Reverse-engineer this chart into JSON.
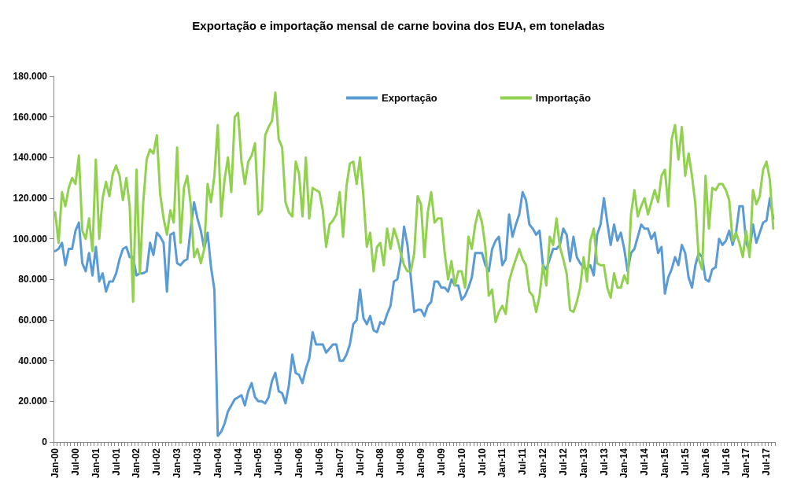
{
  "chart_data": {
    "type": "line",
    "title": "Exportação e importação mensal de carne bovina dos EUA, em toneladas",
    "categories": [
      "Jan-00",
      null,
      null,
      null,
      null,
      null,
      "Jul-00",
      null,
      null,
      null,
      null,
      null,
      "Jan-01",
      null,
      null,
      null,
      null,
      null,
      "Jul-01",
      null,
      null,
      null,
      null,
      null,
      "Jan-02",
      null,
      null,
      null,
      null,
      null,
      "Jul-02",
      null,
      null,
      null,
      null,
      null,
      "Jan-03",
      null,
      null,
      null,
      null,
      null,
      "Jul-03",
      null,
      null,
      null,
      null,
      null,
      "Jan-04",
      null,
      null,
      null,
      null,
      null,
      "Jul-04",
      null,
      null,
      null,
      null,
      null,
      "Jan-05",
      null,
      null,
      null,
      null,
      null,
      "Jul-05",
      null,
      null,
      null,
      null,
      null,
      "Jan-06",
      null,
      null,
      null,
      null,
      null,
      "Jul-06",
      null,
      null,
      null,
      null,
      null,
      "Jan-07",
      null,
      null,
      null,
      null,
      null,
      "Jul-07",
      null,
      null,
      null,
      null,
      null,
      "Jan-08",
      null,
      null,
      null,
      null,
      null,
      "Jul-08",
      null,
      null,
      null,
      null,
      null,
      "Jan-09",
      null,
      null,
      null,
      null,
      null,
      "Jul-09",
      null,
      null,
      null,
      null,
      null,
      "Jan-10",
      null,
      null,
      null,
      null,
      null,
      "Jul-10",
      null,
      null,
      null,
      null,
      null,
      "Jan-11",
      null,
      null,
      null,
      null,
      null,
      "Jul-11",
      null,
      null,
      null,
      null,
      null,
      "Jan-12",
      null,
      null,
      null,
      null,
      null,
      "Jul-12",
      null,
      null,
      null,
      null,
      null,
      "Jan-13",
      null,
      null,
      null,
      null,
      null,
      "Jul-13",
      null,
      null,
      null,
      null,
      null,
      "Jan-14",
      null,
      null,
      null,
      null,
      null,
      "Jul-14",
      null,
      null,
      null,
      null,
      null,
      "Jan-15",
      null,
      null,
      null,
      null,
      null,
      "Jul-15",
      null,
      null,
      null,
      null,
      null,
      "Jan-16",
      null,
      null,
      null,
      null,
      null,
      "Jul-16",
      null,
      null,
      null,
      null,
      null,
      "Jan-17",
      null,
      null,
      null,
      null,
      null,
      "Jul-17",
      null,
      null
    ],
    "series": [
      {
        "name": "Exportação",
        "color": "#5b9bd5",
        "values": [
          94000,
          95000,
          98000,
          87000,
          95000,
          95000,
          104000,
          108000,
          88000,
          84000,
          93000,
          82000,
          96000,
          79000,
          83000,
          74000,
          79000,
          79000,
          83000,
          90000,
          95000,
          96000,
          91000,
          91000,
          82000,
          83000,
          83000,
          84000,
          98000,
          92000,
          103000,
          101000,
          98000,
          74000,
          102000,
          103000,
          88000,
          87000,
          89000,
          90000,
          105000,
          118000,
          110000,
          104000,
          95000,
          103000,
          86000,
          75000,
          3000,
          5000,
          9000,
          15000,
          18000,
          21000,
          22000,
          23000,
          18000,
          25000,
          29000,
          22000,
          20000,
          20000,
          19000,
          22000,
          30000,
          34000,
          25000,
          24000,
          19000,
          28000,
          43000,
          34000,
          33000,
          29000,
          36000,
          41000,
          54000,
          48000,
          48000,
          48000,
          44000,
          46000,
          48000,
          48000,
          40000,
          40000,
          43000,
          48000,
          58000,
          60000,
          75000,
          61000,
          58000,
          62000,
          55000,
          54000,
          59000,
          58000,
          63000,
          67000,
          79000,
          80000,
          89000,
          106000,
          97000,
          81000,
          64000,
          65000,
          65000,
          62000,
          67000,
          69000,
          79000,
          79000,
          76000,
          76000,
          74000,
          80000,
          77000,
          77000,
          70000,
          72000,
          76000,
          81000,
          93000,
          93000,
          93000,
          87000,
          84000,
          95000,
          99000,
          101000,
          87000,
          90000,
          112000,
          101000,
          107000,
          112000,
          123000,
          119000,
          107000,
          105000,
          102000,
          104000,
          87000,
          85000,
          90000,
          95000,
          95000,
          97000,
          105000,
          102000,
          89000,
          101000,
          91000,
          88000,
          86000,
          85000,
          87000,
          82000,
          102000,
          107000,
          120000,
          108000,
          97000,
          107000,
          99000,
          103000,
          95000,
          84000,
          93000,
          95000,
          101000,
          107000,
          105000,
          105000,
          100000,
          103000,
          93000,
          96000,
          73000,
          81000,
          85000,
          91000,
          87000,
          97000,
          93000,
          81000,
          76000,
          87000,
          93000,
          91000,
          80000,
          79000,
          85000,
          86000,
          100000,
          97000,
          99000,
          104000,
          97000,
          103000,
          116000,
          116000,
          98000,
          94000,
          107000,
          98000,
          103000,
          108000,
          109000,
          120000,
          110000
        ]
      },
      {
        "name": "Importação",
        "color": "#92d050",
        "values": [
          113000,
          98000,
          123000,
          116000,
          125000,
          130000,
          127000,
          141000,
          104000,
          100000,
          110000,
          94000,
          139000,
          100000,
          120000,
          128000,
          121000,
          132000,
          136000,
          131000,
          119000,
          130000,
          116000,
          69000,
          134000,
          83000,
          118000,
          139000,
          144000,
          142000,
          151000,
          122000,
          110000,
          102000,
          114000,
          108000,
          145000,
          98000,
          125000,
          131000,
          117000,
          91000,
          95000,
          88000,
          95000,
          127000,
          118000,
          131000,
          156000,
          111000,
          129000,
          140000,
          123000,
          160000,
          162000,
          138000,
          127000,
          138000,
          141000,
          147000,
          112000,
          114000,
          151000,
          155000,
          158000,
          172000,
          149000,
          145000,
          118000,
          113000,
          111000,
          138000,
          132000,
          111000,
          140000,
          110000,
          125000,
          124000,
          123000,
          114000,
          96000,
          107000,
          109000,
          112000,
          123000,
          101000,
          126000,
          137000,
          138000,
          127000,
          140000,
          121000,
          96000,
          103000,
          84000,
          96000,
          98000,
          87000,
          105000,
          95000,
          105000,
          100000,
          93000,
          87000,
          84000,
          84000,
          93000,
          121000,
          117000,
          91000,
          113000,
          123000,
          108000,
          110000,
          110000,
          93000,
          80000,
          89000,
          77000,
          84000,
          84000,
          76000,
          101000,
          95000,
          107000,
          114000,
          108000,
          96000,
          72000,
          75000,
          59000,
          64000,
          67000,
          63000,
          79000,
          85000,
          90000,
          95000,
          90000,
          87000,
          74000,
          72000,
          64000,
          72000,
          87000,
          77000,
          101000,
          97000,
          110000,
          96000,
          90000,
          83000,
          65000,
          64000,
          69000,
          76000,
          91000,
          79000,
          99000,
          105000,
          88000,
          87000,
          87000,
          76000,
          71000,
          83000,
          76000,
          76000,
          82000,
          78000,
          112000,
          124000,
          111000,
          116000,
          120000,
          112000,
          118000,
          124000,
          118000,
          131000,
          134000,
          116000,
          149000,
          156000,
          139000,
          155000,
          131000,
          142000,
          131000,
          117000,
          90000,
          85000,
          131000,
          105000,
          125000,
          124000,
          127000,
          127000,
          124000,
          119000,
          99000,
          103000,
          98000,
          91000,
          104000,
          91000,
          124000,
          117000,
          121000,
          134000,
          138000,
          129000,
          105000
        ]
      }
    ],
    "ylim": [
      0,
      180000
    ],
    "yticks": [
      0,
      {
        "value": 20000,
        "label": "20.000"
      },
      {
        "value": 40000,
        "label": "40.000"
      },
      {
        "value": 60000,
        "label": "60.000"
      },
      {
        "value": 80000,
        "label": "80.000"
      },
      {
        "value": 100000,
        "label": "100.000"
      },
      {
        "value": 120000,
        "label": "120.000"
      },
      {
        "value": 140000,
        "label": "140.000"
      },
      {
        "value": 160000,
        "label": "160.000"
      },
      {
        "value": 180000,
        "label": "180.000"
      }
    ],
    "grid": false,
    "legend": "top",
    "marker": "none",
    "line_style": "solid"
  }
}
